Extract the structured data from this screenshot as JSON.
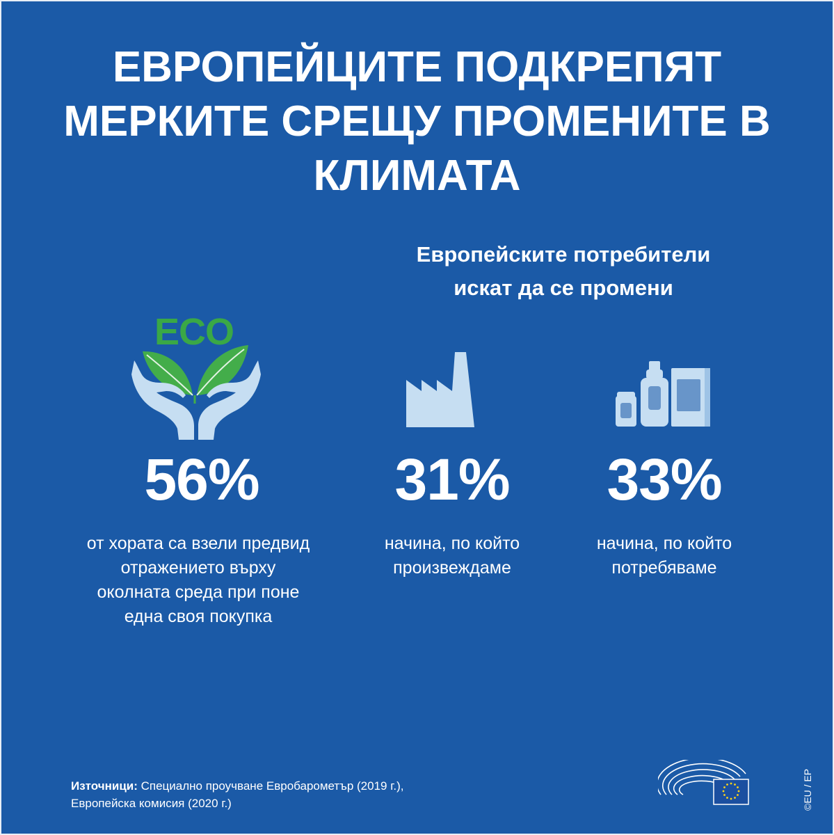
{
  "title": {
    "line1": "ЕВРОПЕЙЦИТЕ ПОДКРЕПЯТ",
    "line2": "МЕРКИТЕ СРЕЩУ ПРОМЕНИТЕ В",
    "line3": "КЛИМАТА"
  },
  "subtitle": {
    "line1": "Европейските потребители",
    "line2": "искат да се промени"
  },
  "eco_label": "ECO",
  "stats": [
    {
      "value": "56%",
      "desc": [
        "от хората са взели предвид",
        "отражението върху",
        "околната среда при поне",
        "една своя покупка"
      ],
      "icon": "eco-hands-icon"
    },
    {
      "value": "31%",
      "desc": [
        "начина, по който",
        "произвеждаме"
      ],
      "icon": "factory-icon"
    },
    {
      "value": "33%",
      "desc": [
        "начина, по който",
        "потребяваме"
      ],
      "icon": "products-icon"
    }
  ],
  "sources": {
    "label": "Източници:",
    "line1": " Специално проучване Евробарометър (2019 г.),",
    "line2": "Европейска комисия (2020 г.)"
  },
  "copyright": "©EU / EP",
  "colors": {
    "background": "#1b5aa7",
    "icon_light": "#c6def2",
    "eco_green": "#3aa846",
    "leaf_green": "#43ad4a"
  }
}
